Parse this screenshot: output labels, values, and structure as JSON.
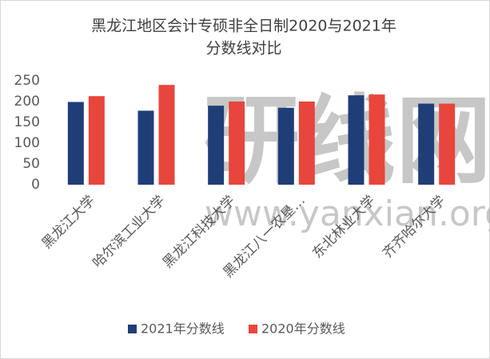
{
  "chart_data": {
    "type": "bar",
    "title": [
      "黑龙江地区会计专硕非全日制2020与2021年",
      "分数线对比"
    ],
    "categories": [
      "黑龙江大学",
      "哈尔滨工业大学",
      "黑龙江科技大学",
      "黑龙江八一农垦…",
      "东北林业大学",
      "齐齐哈尔大学"
    ],
    "series": [
      {
        "name": "2021年分数线",
        "color": "#1f3e78",
        "values": [
          199,
          178,
          190,
          185,
          215,
          195
        ]
      },
      {
        "name": "2020年分数线",
        "color": "#e8453c",
        "values": [
          213,
          240,
          200,
          200,
          217,
          195
        ]
      }
    ],
    "ylim": [
      0,
      250
    ],
    "yticks": [
      0,
      50,
      100,
      150,
      200,
      250
    ],
    "grid": false,
    "legend": "bottom",
    "watermark": [
      "研线网",
      "www.yanxian.org"
    ]
  }
}
